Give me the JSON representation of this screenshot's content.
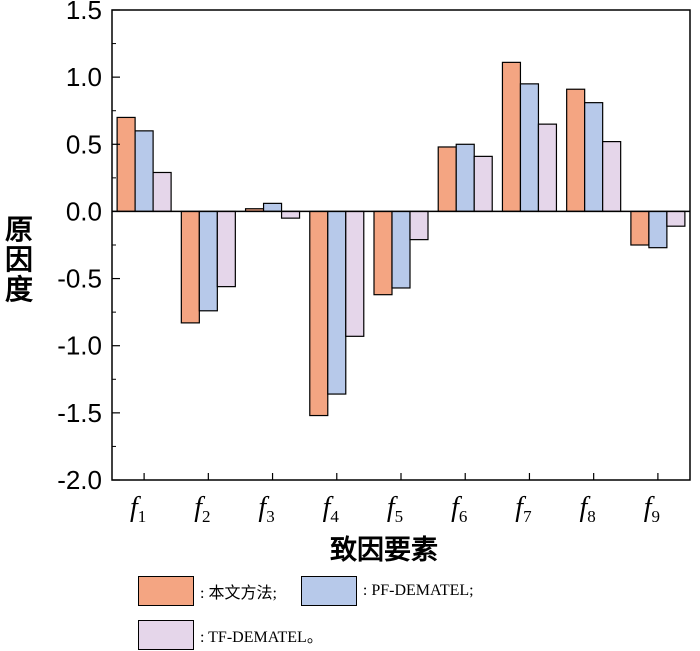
{
  "chart_data": {
    "type": "bar",
    "categories": [
      "f1",
      "f2",
      "f3",
      "f4",
      "f5",
      "f6",
      "f7",
      "f8",
      "f9"
    ],
    "category_labels": [
      {
        "base": "f",
        "sub": "1"
      },
      {
        "base": "f",
        "sub": "2"
      },
      {
        "base": "f",
        "sub": "3"
      },
      {
        "base": "f",
        "sub": "4"
      },
      {
        "base": "f",
        "sub": "5"
      },
      {
        "base": "f",
        "sub": "6"
      },
      {
        "base": "f",
        "sub": "7"
      },
      {
        "base": "f",
        "sub": "8"
      },
      {
        "base": "f",
        "sub": "9"
      }
    ],
    "series": [
      {
        "name": "本文方法",
        "color": "#F4A582",
        "values": [
          0.7,
          -0.83,
          0.02,
          -1.52,
          -0.62,
          0.48,
          1.11,
          0.91,
          -0.25
        ]
      },
      {
        "name": "PF-DEMATEL",
        "color": "#B7C9EA",
        "values": [
          0.6,
          -0.74,
          0.06,
          -1.36,
          -0.57,
          0.5,
          0.95,
          0.81,
          -0.27
        ]
      },
      {
        "name": "TF-DEMATEL",
        "color": "#E5D6EA",
        "values": [
          0.29,
          -0.56,
          -0.05,
          -0.93,
          -0.21,
          0.41,
          0.65,
          0.52,
          -0.11
        ]
      }
    ],
    "xlabel": "致因要素",
    "ylabel": "原因度",
    "ylim": [
      -2.0,
      1.5
    ],
    "yticks": [
      "1.5",
      "1.0",
      "0.5",
      "0.0",
      "-0.5",
      "-1.0",
      "-1.5",
      "-2.0"
    ],
    "ytick_values": [
      1.5,
      1.0,
      0.5,
      0.0,
      -0.5,
      -1.0,
      -1.5,
      -2.0
    ],
    "grid": false
  },
  "legend": {
    "items": [
      {
        "label": ": 本文方法;"
      },
      {
        "label": ": PF-DEMATEL;"
      },
      {
        "label": ": TF-DEMATEL。"
      }
    ]
  }
}
